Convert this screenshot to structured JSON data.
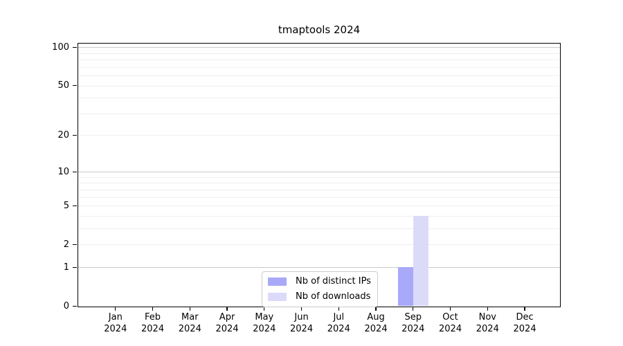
{
  "chart_data": {
    "type": "bar",
    "title": "tmaptools 2024",
    "categories": [
      "Jan 2024",
      "Feb 2024",
      "Mar 2024",
      "Apr 2024",
      "May 2024",
      "Jun 2024",
      "Jul 2024",
      "Aug 2024",
      "Sep 2024",
      "Oct 2024",
      "Nov 2024",
      "Dec 2024"
    ],
    "x_tick_labels": [
      {
        "month": "Jan",
        "year": "2024"
      },
      {
        "month": "Feb",
        "year": "2024"
      },
      {
        "month": "Mar",
        "year": "2024"
      },
      {
        "month": "Apr",
        "year": "2024"
      },
      {
        "month": "May",
        "year": "2024"
      },
      {
        "month": "Jun",
        "year": "2024"
      },
      {
        "month": "Jul",
        "year": "2024"
      },
      {
        "month": "Aug",
        "year": "2024"
      },
      {
        "month": "Sep",
        "year": "2024"
      },
      {
        "month": "Oct",
        "year": "2024"
      },
      {
        "month": "Nov",
        "year": "2024"
      },
      {
        "month": "Dec",
        "year": "2024"
      }
    ],
    "series": [
      {
        "name": "Nb of distinct IPs",
        "color": "#a8a9f8",
        "values": [
          0,
          0,
          0,
          0,
          0,
          0,
          0,
          0,
          1,
          0,
          0,
          0
        ]
      },
      {
        "name": "Nb of downloads",
        "color": "#dbdbf9",
        "values": [
          0,
          0,
          0,
          0,
          0,
          0,
          0,
          0,
          4,
          0,
          0,
          0
        ]
      }
    ],
    "yaxis": {
      "scale": "log1p",
      "tick_values": [
        0,
        1,
        2,
        5,
        10,
        20,
        50,
        100
      ],
      "major_grid_values": [
        1,
        10,
        100
      ],
      "minor_grid_values": [
        2,
        3,
        4,
        5,
        6,
        7,
        8,
        9,
        20,
        30,
        40,
        50,
        60,
        70,
        80,
        90
      ],
      "ylim": [
        0,
        110
      ]
    },
    "xlabel": "",
    "ylabel": "",
    "grid": true,
    "legend_position": "lower center, inside plot"
  },
  "colors": {
    "background": "#ffffff",
    "axis": "#000000",
    "text": "#000000",
    "major_grid": "#cbcbcb",
    "minor_grid": "#efefef",
    "legend_border": "#cccccc",
    "bar_distinct_ips": "#a8a9f8",
    "bar_downloads": "#dbdbf9"
  }
}
